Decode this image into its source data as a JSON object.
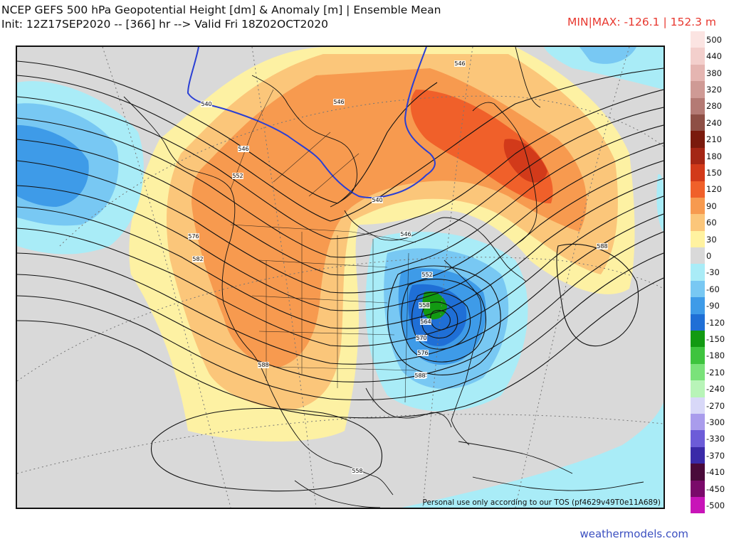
{
  "header": {
    "title_line1": "NCEP GEFS 500 hPa Geopotential Height [dm] & Anomaly [m] | Ensemble Mean",
    "title_line2": "Init: 12Z17SEP2020 -- [366] hr --> Valid Fri 18Z02OCT2020",
    "minmax": "MIN|MAX: -126.1 | 152.3 m"
  },
  "map": {
    "contour_labels": [
      "546",
      "540",
      "546",
      "552",
      "576",
      "582",
      "588",
      "540",
      "546",
      "552",
      "558",
      "564",
      "570",
      "576",
      "582",
      "588",
      "546",
      "588",
      "558",
      "546"
    ],
    "credit_text": "Personal use only according to our TOS (pf4629v49T0e11A689)",
    "colors": {
      "background_gray": "#d9d9d9",
      "contour_line": "#111111",
      "contour_540": "#2a3fd4"
    }
  },
  "colorbar": {
    "labels": [
      "500",
      "440",
      "380",
      "320",
      "280",
      "240",
      "210",
      "180",
      "150",
      "120",
      "90",
      "60",
      "30",
      "0",
      "-30",
      "-60",
      "-90",
      "-120",
      "-150",
      "-180",
      "-210",
      "-240",
      "-270",
      "-300",
      "-330",
      "-370",
      "-410",
      "-450",
      "-500"
    ],
    "colors": [
      "#fbe4e2",
      "#f3cfcc",
      "#e5b5b1",
      "#cf9a95",
      "#b47a74",
      "#8e4f45",
      "#7a1a0d",
      "#a42615",
      "#d23a1a",
      "#f0602a",
      "#f79a4f",
      "#fbc67a",
      "#fff2a0",
      "#d9d9d9",
      "#a9ecf7",
      "#78c8f3",
      "#3e9be8",
      "#1f6fd6",
      "#129a12",
      "#3ec43e",
      "#7ae27a",
      "#b8f4b8",
      "#d8d8f8",
      "#a99cec",
      "#6c5cd8",
      "#3a2aa8",
      "#4a0a3a",
      "#7a0a6a",
      "#c814b8"
    ]
  },
  "footer": {
    "site": "weathermodels.com"
  }
}
